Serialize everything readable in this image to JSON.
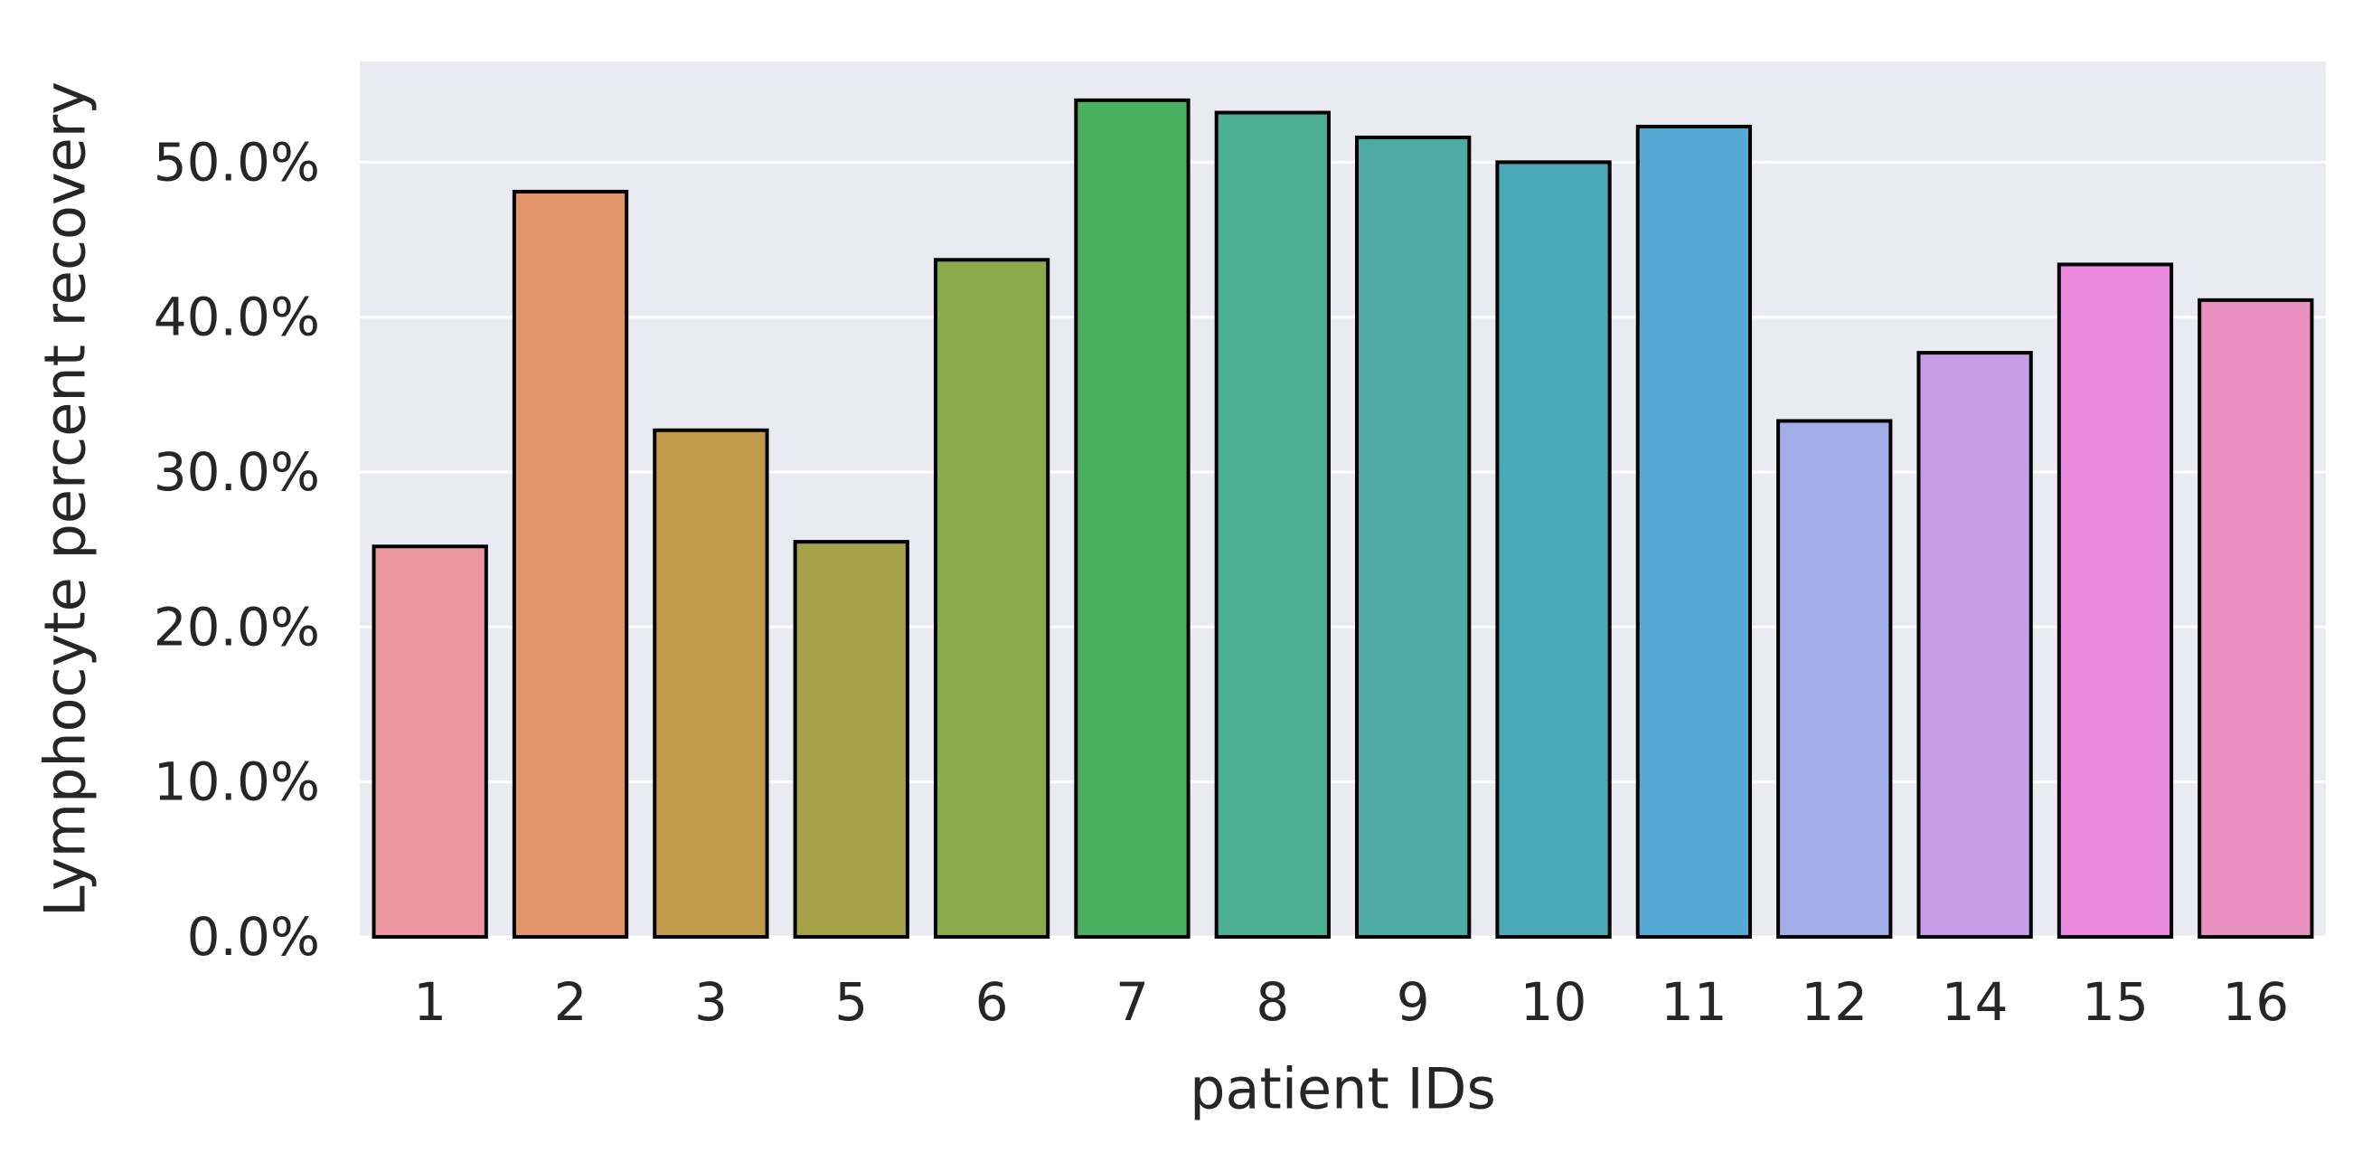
{
  "chart_data": {
    "type": "bar",
    "title": "",
    "xlabel": "patient IDs",
    "ylabel": "Lymphocyte percent recovery",
    "categories": [
      "1",
      "2",
      "3",
      "5",
      "6",
      "7",
      "8",
      "9",
      "10",
      "11",
      "12",
      "14",
      "15",
      "16"
    ],
    "values": [
      0.252,
      0.481,
      0.327,
      0.255,
      0.437,
      0.54,
      0.532,
      0.516,
      0.5,
      0.523,
      0.333,
      0.377,
      0.434,
      0.411
    ],
    "ylim": [
      0,
      0.565
    ],
    "yticks": [
      0.0,
      0.1,
      0.2,
      0.3,
      0.4,
      0.5
    ],
    "ytick_labels": [
      "0.0%",
      "10.0%",
      "20.0%",
      "30.0%",
      "40.0%",
      "50.0%"
    ],
    "grid": true,
    "colors": [
      "#ec96a1",
      "#e4946b",
      "#c19a4a",
      "#a5a147",
      "#8aaa4b",
      "#4aaf60",
      "#4caf92",
      "#4ca9a4",
      "#4ba8b6",
      "#55aad5",
      "#a1aee8",
      "#c69de6",
      "#e98ade",
      "#e891c0"
    ],
    "edge_color": "#000000",
    "background_color": "#eaeaf2",
    "grid_color": "#ffffff"
  }
}
